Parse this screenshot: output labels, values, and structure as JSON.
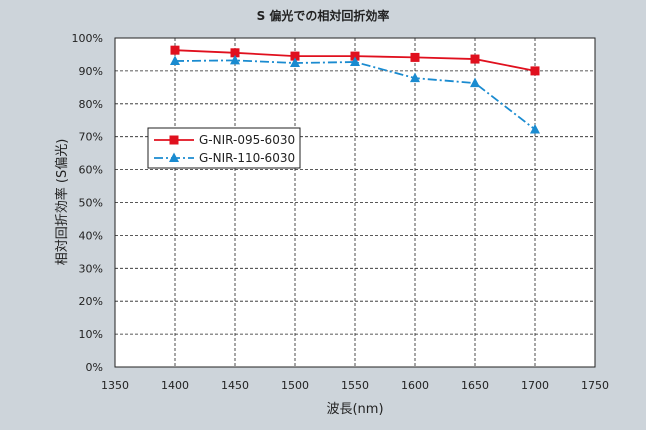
{
  "chart_data": {
    "type": "line",
    "title": "S 偏光での相対回折効率",
    "xlabel": "波長(nm)",
    "ylabel": "相対回折効率 (S偏光)",
    "xlim": [
      1350,
      1750
    ],
    "ylim": [
      0,
      100
    ],
    "x_ticks": [
      1350,
      1400,
      1450,
      1500,
      1550,
      1600,
      1650,
      1700,
      1750
    ],
    "y_ticks": [
      0,
      10,
      20,
      30,
      40,
      50,
      60,
      70,
      80,
      90,
      100
    ],
    "y_tick_suffix": "%",
    "grid": true,
    "legend_position": "middle-left",
    "series": [
      {
        "name": "G-NIR-095-6030",
        "color": "#e0101e",
        "line_style": "solid",
        "marker": "square",
        "x": [
          1400,
          1450,
          1500,
          1550,
          1600,
          1650,
          1700
        ],
        "y": [
          96.3,
          95.5,
          94.5,
          94.5,
          94.1,
          93.6,
          90.0
        ]
      },
      {
        "name": "G-NIR-110-6030",
        "color": "#1a8bd0",
        "line_style": "dash-dot",
        "marker": "triangle",
        "x": [
          1400,
          1450,
          1500,
          1550,
          1600,
          1650,
          1700
        ],
        "y": [
          93.0,
          93.2,
          92.4,
          92.7,
          87.8,
          86.3,
          72.2
        ]
      }
    ]
  }
}
